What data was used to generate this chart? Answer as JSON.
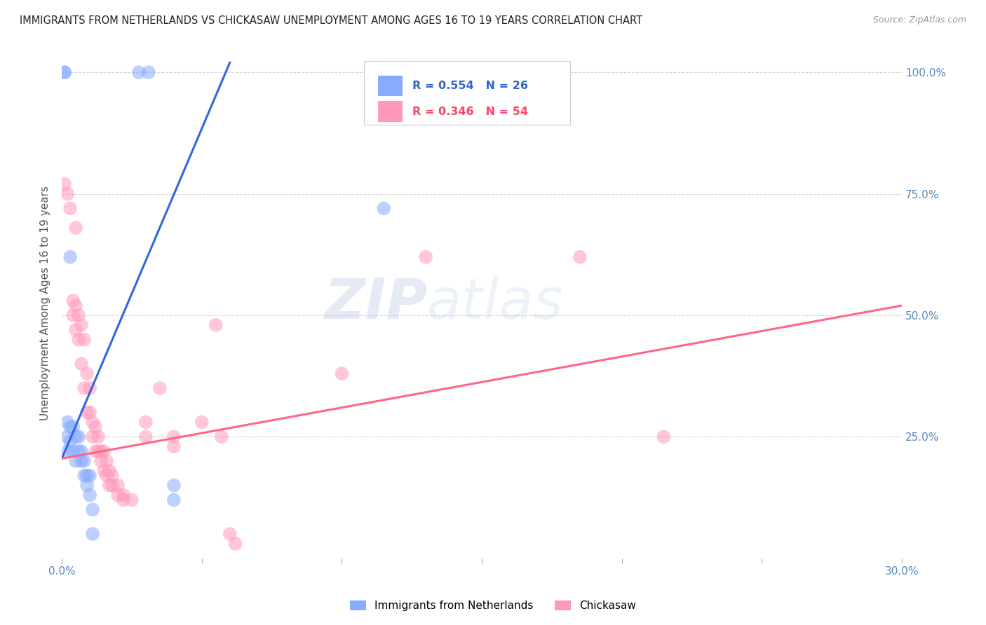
{
  "title": "IMMIGRANTS FROM NETHERLANDS VS CHICKASAW UNEMPLOYMENT AMONG AGES 16 TO 19 YEARS CORRELATION CHART",
  "source": "Source: ZipAtlas.com",
  "ylabel": "Unemployment Among Ages 16 to 19 years",
  "xlim": [
    0.0,
    0.3
  ],
  "ylim": [
    0.0,
    1.05
  ],
  "xticks": [
    0.0,
    0.05,
    0.1,
    0.15,
    0.2,
    0.25,
    0.3
  ],
  "xticklabels": [
    "0.0%",
    "",
    "",
    "",
    "",
    "",
    "30.0%"
  ],
  "yticks": [
    0.0,
    0.25,
    0.5,
    0.75,
    1.0
  ],
  "yticklabels": [
    "",
    "25.0%",
    "50.0%",
    "75.0%",
    "100.0%"
  ],
  "blue_scatter": [
    [
      0.001,
      1.0
    ],
    [
      0.001,
      1.0
    ],
    [
      0.0275,
      1.0
    ],
    [
      0.031,
      1.0
    ],
    [
      0.003,
      0.62
    ],
    [
      0.002,
      0.28
    ],
    [
      0.002,
      0.25
    ],
    [
      0.002,
      0.22
    ],
    [
      0.003,
      0.27
    ],
    [
      0.003,
      0.24
    ],
    [
      0.004,
      0.27
    ],
    [
      0.004,
      0.22
    ],
    [
      0.005,
      0.25
    ],
    [
      0.005,
      0.2
    ],
    [
      0.006,
      0.25
    ],
    [
      0.006,
      0.22
    ],
    [
      0.007,
      0.22
    ],
    [
      0.007,
      0.2
    ],
    [
      0.008,
      0.2
    ],
    [
      0.008,
      0.17
    ],
    [
      0.009,
      0.17
    ],
    [
      0.009,
      0.15
    ],
    [
      0.01,
      0.17
    ],
    [
      0.01,
      0.13
    ],
    [
      0.011,
      0.1
    ],
    [
      0.011,
      0.05
    ],
    [
      0.04,
      0.15
    ],
    [
      0.04,
      0.12
    ],
    [
      0.115,
      0.72
    ]
  ],
  "pink_scatter": [
    [
      0.001,
      0.77
    ],
    [
      0.002,
      0.75
    ],
    [
      0.003,
      0.72
    ],
    [
      0.004,
      0.53
    ],
    [
      0.004,
      0.5
    ],
    [
      0.005,
      0.68
    ],
    [
      0.005,
      0.52
    ],
    [
      0.005,
      0.47
    ],
    [
      0.006,
      0.5
    ],
    [
      0.006,
      0.45
    ],
    [
      0.007,
      0.48
    ],
    [
      0.007,
      0.4
    ],
    [
      0.008,
      0.45
    ],
    [
      0.008,
      0.35
    ],
    [
      0.009,
      0.38
    ],
    [
      0.009,
      0.3
    ],
    [
      0.01,
      0.35
    ],
    [
      0.01,
      0.3
    ],
    [
      0.011,
      0.28
    ],
    [
      0.011,
      0.25
    ],
    [
      0.012,
      0.27
    ],
    [
      0.012,
      0.22
    ],
    [
      0.013,
      0.25
    ],
    [
      0.013,
      0.22
    ],
    [
      0.014,
      0.22
    ],
    [
      0.014,
      0.2
    ],
    [
      0.015,
      0.22
    ],
    [
      0.015,
      0.18
    ],
    [
      0.016,
      0.2
    ],
    [
      0.016,
      0.17
    ],
    [
      0.017,
      0.18
    ],
    [
      0.017,
      0.15
    ],
    [
      0.018,
      0.17
    ],
    [
      0.018,
      0.15
    ],
    [
      0.02,
      0.15
    ],
    [
      0.02,
      0.13
    ],
    [
      0.022,
      0.13
    ],
    [
      0.022,
      0.12
    ],
    [
      0.03,
      0.28
    ],
    [
      0.03,
      0.25
    ],
    [
      0.035,
      0.35
    ],
    [
      0.04,
      0.25
    ],
    [
      0.04,
      0.23
    ],
    [
      0.05,
      0.28
    ],
    [
      0.055,
      0.48
    ],
    [
      0.057,
      0.25
    ],
    [
      0.06,
      0.05
    ],
    [
      0.062,
      0.03
    ],
    [
      0.1,
      0.38
    ],
    [
      0.13,
      0.62
    ],
    [
      0.185,
      0.62
    ],
    [
      0.215,
      0.25
    ],
    [
      0.025,
      0.12
    ]
  ],
  "blue_line": [
    [
      0.0,
      0.205
    ],
    [
      0.06,
      1.02
    ]
  ],
  "pink_line": [
    [
      0.0,
      0.205
    ],
    [
      0.3,
      0.52
    ]
  ],
  "blue_color": "#88AAFF",
  "pink_color": "#FF99BB",
  "blue_line_color": "#3366DD",
  "pink_line_color": "#FF6688",
  "watermark_zip": "ZIP",
  "watermark_atlas": "atlas",
  "background_color": "#FFFFFF",
  "grid_color": "#CCCCCC"
}
